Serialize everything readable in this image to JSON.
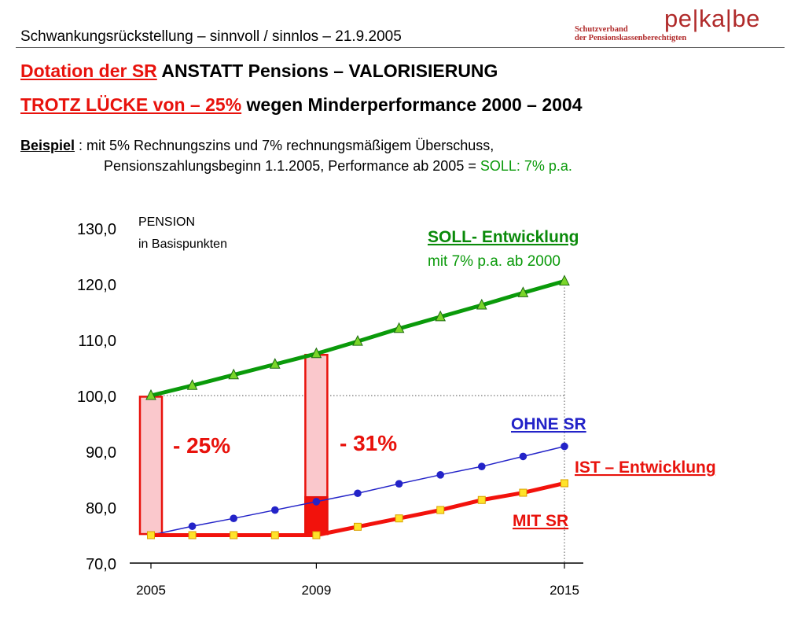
{
  "header": {
    "title": "Schwankungsrückstellung – sinnvoll / sinnlos – 21.9.2005",
    "logo_org_line1": "Schutzverband",
    "logo_org_line2": "der Pensionskassenberechtigten",
    "logo_brand": "pe|ka|be"
  },
  "headline": {
    "line1_red": "Dotation der SR",
    "line1_rest": "ANSTATT  Pensions – VALORISIERUNG",
    "line2_red": "TROTZ  LÜCKE von – 25%",
    "line2_rest": "wegen Minderperformance 2000 – 2004"
  },
  "example": {
    "label": "Beispiel",
    "line1": " : mit 5% Rechnungszins und 7% rechnungsmäßigem Überschuss,",
    "line2": "Pensionszahlungsbeginn 1.1.2005, Performance ab 2005 = ",
    "line2_green": "SOLL: 7% p.a."
  },
  "chart_data": {
    "type": "line",
    "ylabel_line1": "PENSION",
    "ylabel_line2": "in Basispunkten",
    "ylim": [
      70,
      130
    ],
    "yticks": [
      "130,0",
      "120,0",
      "110,0",
      "100,0",
      "90,0",
      "80,0",
      "70,0"
    ],
    "ytick_values": [
      130,
      120,
      110,
      100,
      90,
      80,
      70
    ],
    "x": [
      2005,
      2006,
      2007,
      2008,
      2009,
      2010,
      2011,
      2012,
      2013,
      2014,
      2015
    ],
    "xlim": [
      2005,
      2015
    ],
    "xtick_labels": [
      "2005",
      "2009",
      "2015"
    ],
    "xtick_values": [
      2005,
      2009,
      2015
    ],
    "series": [
      {
        "name": "SOLL- Entwicklung",
        "subtitle": "mit 7% p.a. ab 2000",
        "color": "#0a9a0a",
        "marker": "triangle",
        "values": [
          100.0,
          101.8,
          103.7,
          105.6,
          107.5,
          109.7,
          112.0,
          114.1,
          116.2,
          118.4,
          120.5
        ]
      },
      {
        "name": "OHNE SR",
        "color": "#2323c8",
        "marker": "circle",
        "values": [
          75.0,
          76.6,
          78.0,
          79.5,
          81.0,
          82.5,
          84.2,
          85.8,
          87.3,
          89.1,
          90.9
        ]
      },
      {
        "name": "MIT SR",
        "group_label": "IST – Entwicklung",
        "color": "#f2120c",
        "marker": "square",
        "values": [
          75.0,
          75.0,
          75.0,
          75.0,
          75.0,
          76.5,
          78.0,
          79.5,
          81.3,
          82.6,
          84.3
        ]
      }
    ],
    "gap_bars": [
      {
        "x": 2005,
        "top": 99.8,
        "bottom": 75.2,
        "label": "- 25%"
      },
      {
        "x": 2009,
        "top": 107.3,
        "mid": 81.8,
        "bottom": 75.2,
        "label": "- 31%"
      }
    ],
    "reference_line_y": 100,
    "colors": {
      "gap_fill": "#fac8cc",
      "gap_stroke": "#e8120c",
      "gap_solid": "#f2120c"
    }
  }
}
